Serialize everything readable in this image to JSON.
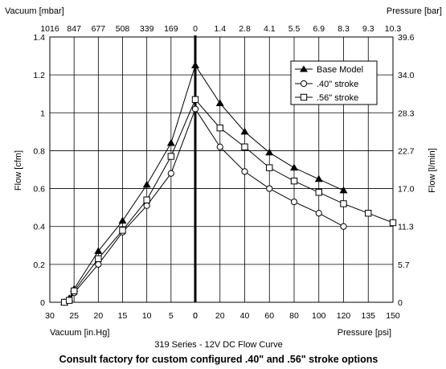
{
  "chart_data": {
    "type": "line",
    "title": "319 Series - 12V DC Flow Curve",
    "footer": "Consult factory for custom configured .40\" and .56\" stroke options",
    "grid": true,
    "legend_position": "top-right",
    "axes": {
      "left": {
        "label": "Flow [cfm]",
        "range": [
          0,
          1.4
        ],
        "ticks": [
          "0",
          "0.2",
          "0.4",
          "0.6",
          "0.8",
          "1",
          "1.2",
          "1.4"
        ]
      },
      "right": {
        "label": "Flow [l/min]",
        "ticks": [
          "0",
          "5.7",
          "11.3",
          "17.0",
          "22.7",
          "28.3",
          "34.0",
          "39.6"
        ]
      },
      "bottom_left": {
        "label": "Vacuum [in.Hg]",
        "ticks": [
          "30",
          "25",
          "20",
          "15",
          "10",
          "5",
          "0"
        ]
      },
      "bottom_right": {
        "label": "Pressure [psi]",
        "ticks": [
          "20",
          "40",
          "60",
          "80",
          "100",
          "120",
          "135",
          "150"
        ]
      },
      "top_left": {
        "label": "Vacuum [mbar]",
        "ticks": [
          "1016",
          "847",
          "677",
          "508",
          "339",
          "169",
          "0"
        ]
      },
      "top_right": {
        "label": "Pressure [bar]",
        "ticks": [
          "1.4",
          "2.8",
          "4.1",
          "5.5",
          "6.9",
          "8.3",
          "9.3",
          "10.3"
        ]
      }
    },
    "series": [
      {
        "name": "Base Model",
        "marker": "triangle",
        "vacuum": {
          "x": [
            27,
            26,
            25,
            20,
            15,
            10,
            5,
            0
          ],
          "y": [
            0.0,
            0.02,
            0.07,
            0.27,
            0.43,
            0.62,
            0.84,
            1.25
          ]
        },
        "pressure": {
          "x": [
            0,
            20,
            40,
            60,
            80,
            100,
            120
          ],
          "y": [
            1.25,
            1.05,
            0.9,
            0.79,
            0.71,
            0.65,
            0.59
          ]
        }
      },
      {
        "name": ".40\" stroke",
        "marker": "circle",
        "vacuum": {
          "x": [
            27,
            26,
            25,
            20,
            15,
            10,
            5,
            0
          ],
          "y": [
            0.0,
            0.01,
            0.05,
            0.2,
            0.37,
            0.51,
            0.68,
            1.02
          ]
        },
        "pressure": {
          "x": [
            0,
            20,
            40,
            60,
            80,
            100,
            120
          ],
          "y": [
            1.02,
            0.82,
            0.69,
            0.6,
            0.53,
            0.47,
            0.4
          ]
        }
      },
      {
        "name": ".56\" stroke",
        "marker": "square",
        "vacuum": {
          "x": [
            27,
            26,
            25,
            20,
            15,
            10,
            5,
            0
          ],
          "y": [
            0.0,
            0.01,
            0.06,
            0.23,
            0.38,
            0.54,
            0.77,
            1.07
          ]
        },
        "pressure": {
          "x": [
            0,
            20,
            40,
            60,
            80,
            100,
            120,
            135,
            150
          ],
          "y": [
            1.07,
            0.92,
            0.82,
            0.71,
            0.64,
            0.58,
            0.52,
            0.47,
            0.42
          ]
        }
      }
    ]
  }
}
